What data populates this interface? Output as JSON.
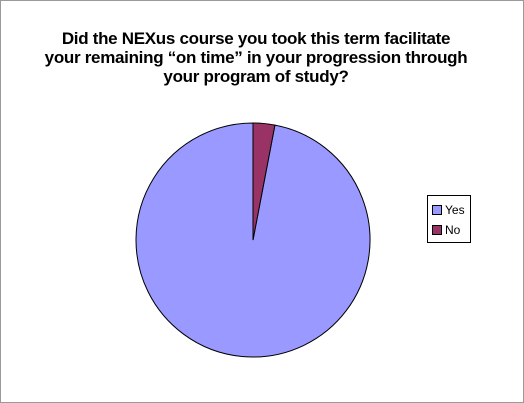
{
  "chart_data": {
    "type": "pie",
    "title_lines": [
      "Did the NEXus course you took this term facilitate",
      "your remaining “on time” in your progression through",
      "your program of study?"
    ],
    "slices": [
      {
        "name": "Yes",
        "value": 97,
        "color": "#9999ff"
      },
      {
        "name": "No",
        "value": 3,
        "color": "#993366"
      }
    ],
    "legend_position": "right"
  }
}
